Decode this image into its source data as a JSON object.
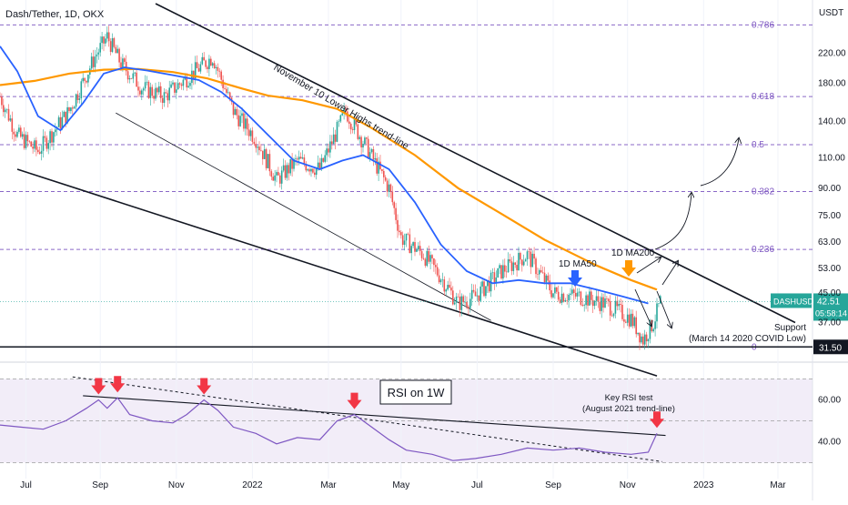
{
  "header": {
    "symbol": "Dash/Tether, 1D, OKX",
    "currency": "USDT"
  },
  "chart_data": [
    {
      "type": "candlestick",
      "title": "Dash/Tether, 1D, OKX",
      "y_scale": "log",
      "ylim": [
        29,
        305
      ],
      "y_ticks": [
        {
          "v": 220,
          "label": "220.00"
        },
        {
          "v": 180,
          "label": "180.00"
        },
        {
          "v": 140,
          "label": "140.00"
        },
        {
          "v": 110,
          "label": "110.00"
        },
        {
          "v": 90,
          "label": "90.00"
        },
        {
          "v": 75,
          "label": "75.00"
        },
        {
          "v": 63,
          "label": "63.00"
        },
        {
          "v": 53,
          "label": "53.00"
        },
        {
          "v": 45,
          "label": "45.00"
        },
        {
          "v": 37,
          "label": "37.00"
        }
      ],
      "fib_levels": [
        {
          "label": "0.786",
          "v": 265
        },
        {
          "label": "0.618",
          "v": 165
        },
        {
          "label": "0.5",
          "v": 120
        },
        {
          "label": "0.382",
          "v": 88
        },
        {
          "label": "0.236",
          "v": 60
        },
        {
          "label": "0",
          "v": 31.5
        }
      ],
      "price_path": [
        {
          "t": 0,
          "v": 165
        },
        {
          "t": 10,
          "v": 128
        },
        {
          "t": 22,
          "v": 115
        },
        {
          "t": 40,
          "v": 150
        },
        {
          "t": 55,
          "v": 215
        },
        {
          "t": 62,
          "v": 245
        },
        {
          "t": 70,
          "v": 205
        },
        {
          "t": 82,
          "v": 175
        },
        {
          "t": 95,
          "v": 165
        },
        {
          "t": 110,
          "v": 190
        },
        {
          "t": 123,
          "v": 215
        },
        {
          "t": 135,
          "v": 150
        },
        {
          "t": 148,
          "v": 125
        },
        {
          "t": 160,
          "v": 95
        },
        {
          "t": 172,
          "v": 108
        },
        {
          "t": 185,
          "v": 102
        },
        {
          "t": 200,
          "v": 150
        },
        {
          "t": 212,
          "v": 118
        },
        {
          "t": 225,
          "v": 90
        },
        {
          "t": 232,
          "v": 65
        },
        {
          "t": 245,
          "v": 58
        },
        {
          "t": 255,
          "v": 50
        },
        {
          "t": 265,
          "v": 42
        },
        {
          "t": 275,
          "v": 44
        },
        {
          "t": 290,
          "v": 52
        },
        {
          "t": 305,
          "v": 58
        },
        {
          "t": 320,
          "v": 45
        },
        {
          "t": 335,
          "v": 44
        },
        {
          "t": 350,
          "v": 42
        },
        {
          "t": 365,
          "v": 38
        },
        {
          "t": 372,
          "v": 33
        },
        {
          "t": 378,
          "v": 37
        },
        {
          "t": 382,
          "v": 42.5
        }
      ],
      "ma50_path": [
        {
          "t": 0,
          "v": 230
        },
        {
          "t": 10,
          "v": 195
        },
        {
          "t": 22,
          "v": 145
        },
        {
          "t": 35,
          "v": 132
        },
        {
          "t": 48,
          "v": 158
        },
        {
          "t": 60,
          "v": 192
        },
        {
          "t": 72,
          "v": 200
        },
        {
          "t": 85,
          "v": 196
        },
        {
          "t": 100,
          "v": 190
        },
        {
          "t": 115,
          "v": 184
        },
        {
          "t": 128,
          "v": 170
        },
        {
          "t": 140,
          "v": 152
        },
        {
          "t": 155,
          "v": 128
        },
        {
          "t": 170,
          "v": 108
        },
        {
          "t": 185,
          "v": 102
        },
        {
          "t": 198,
          "v": 108
        },
        {
          "t": 210,
          "v": 112
        },
        {
          "t": 225,
          "v": 102
        },
        {
          "t": 240,
          "v": 82
        },
        {
          "t": 255,
          "v": 62
        },
        {
          "t": 270,
          "v": 52
        },
        {
          "t": 285,
          "v": 48
        },
        {
          "t": 300,
          "v": 49
        },
        {
          "t": 315,
          "v": 48
        },
        {
          "t": 330,
          "v": 48
        },
        {
          "t": 345,
          "v": 46
        },
        {
          "t": 360,
          "v": 44
        },
        {
          "t": 375,
          "v": 42
        }
      ],
      "ma200_path": [
        {
          "t": 0,
          "v": 178
        },
        {
          "t": 20,
          "v": 183
        },
        {
          "t": 40,
          "v": 192
        },
        {
          "t": 60,
          "v": 197
        },
        {
          "t": 80,
          "v": 198
        },
        {
          "t": 100,
          "v": 194
        },
        {
          "t": 120,
          "v": 186
        },
        {
          "t": 140,
          "v": 174
        },
        {
          "t": 155,
          "v": 166
        },
        {
          "t": 175,
          "v": 161
        },
        {
          "t": 195,
          "v": 152
        },
        {
          "t": 215,
          "v": 134
        },
        {
          "t": 240,
          "v": 112
        },
        {
          "t": 265,
          "v": 90
        },
        {
          "t": 290,
          "v": 76
        },
        {
          "t": 315,
          "v": 64
        },
        {
          "t": 345,
          "v": 54
        },
        {
          "t": 365,
          "v": 49
        },
        {
          "t": 380,
          "v": 46
        }
      ],
      "last_price": {
        "label": "DASHUSDT",
        "value": "42.51",
        "countdown": "05:58:14"
      },
      "support_price": {
        "label": "31.50",
        "v": 31.5
      },
      "annotations": {
        "trendline": "November 10 Lower Highs trend-line",
        "ma50": "1D MA50",
        "ma200": "1D MA200",
        "support_line1": "Support",
        "support_line2": "(March 14 2020 COVID Low)"
      }
    },
    {
      "type": "line",
      "title": "RSI on 1W",
      "ylim": [
        25,
        75
      ],
      "y_ticks": [
        {
          "v": 60,
          "label": "60.00"
        },
        {
          "v": 40,
          "label": "40.00"
        }
      ],
      "band": [
        30,
        70
      ],
      "rsi_path": [
        {
          "t": 0,
          "v": 48
        },
        {
          "t": 12,
          "v": 47
        },
        {
          "t": 25,
          "v": 46
        },
        {
          "t": 38,
          "v": 50
        },
        {
          "t": 50,
          "v": 56
        },
        {
          "t": 57,
          "v": 60
        },
        {
          "t": 62,
          "v": 56
        },
        {
          "t": 68,
          "v": 61
        },
        {
          "t": 75,
          "v": 53
        },
        {
          "t": 88,
          "v": 50
        },
        {
          "t": 100,
          "v": 49
        },
        {
          "t": 108,
          "v": 53
        },
        {
          "t": 118,
          "v": 60
        },
        {
          "t": 126,
          "v": 55
        },
        {
          "t": 135,
          "v": 47
        },
        {
          "t": 148,
          "v": 44
        },
        {
          "t": 160,
          "v": 39
        },
        {
          "t": 172,
          "v": 42
        },
        {
          "t": 185,
          "v": 41
        },
        {
          "t": 195,
          "v": 50
        },
        {
          "t": 205,
          "v": 53
        },
        {
          "t": 215,
          "v": 47
        },
        {
          "t": 225,
          "v": 41
        },
        {
          "t": 235,
          "v": 36
        },
        {
          "t": 250,
          "v": 34
        },
        {
          "t": 262,
          "v": 31
        },
        {
          "t": 275,
          "v": 32
        },
        {
          "t": 290,
          "v": 34
        },
        {
          "t": 305,
          "v": 37
        },
        {
          "t": 320,
          "v": 36
        },
        {
          "t": 335,
          "v": 37
        },
        {
          "t": 350,
          "v": 35
        },
        {
          "t": 365,
          "v": 34
        },
        {
          "t": 375,
          "v": 35
        },
        {
          "t": 380,
          "v": 44
        }
      ],
      "annotations": {
        "title": "RSI on 1W",
        "key_test1": "Key RSI test",
        "key_test2": "(August 2021 trend-line)"
      }
    }
  ],
  "x_axis": {
    "labels": [
      {
        "t": 15,
        "label": "Jul"
      },
      {
        "t": 58,
        "label": "Sep"
      },
      {
        "t": 102,
        "label": "Nov"
      },
      {
        "t": 146,
        "label": "2022"
      },
      {
        "t": 190,
        "label": "Mar"
      },
      {
        "t": 232,
        "label": "May"
      },
      {
        "t": 276,
        "label": "Jul"
      },
      {
        "t": 320,
        "label": "Sep"
      },
      {
        "t": 363,
        "label": "Nov"
      },
      {
        "t": 407,
        "label": "2023"
      },
      {
        "t": 450,
        "label": "Mar"
      }
    ]
  },
  "colors": {
    "up": "#26a69a",
    "down": "#ef5350",
    "ma50": "#2962ff",
    "ma200": "#ff9800",
    "rsi": "#7e57c2",
    "fib": "#7e57c2",
    "arrow_red": "#f23645",
    "arrow_blue": "#2962ff",
    "arrow_orange": "#ff9800",
    "last": "#26a69a",
    "support": "#131722"
  }
}
